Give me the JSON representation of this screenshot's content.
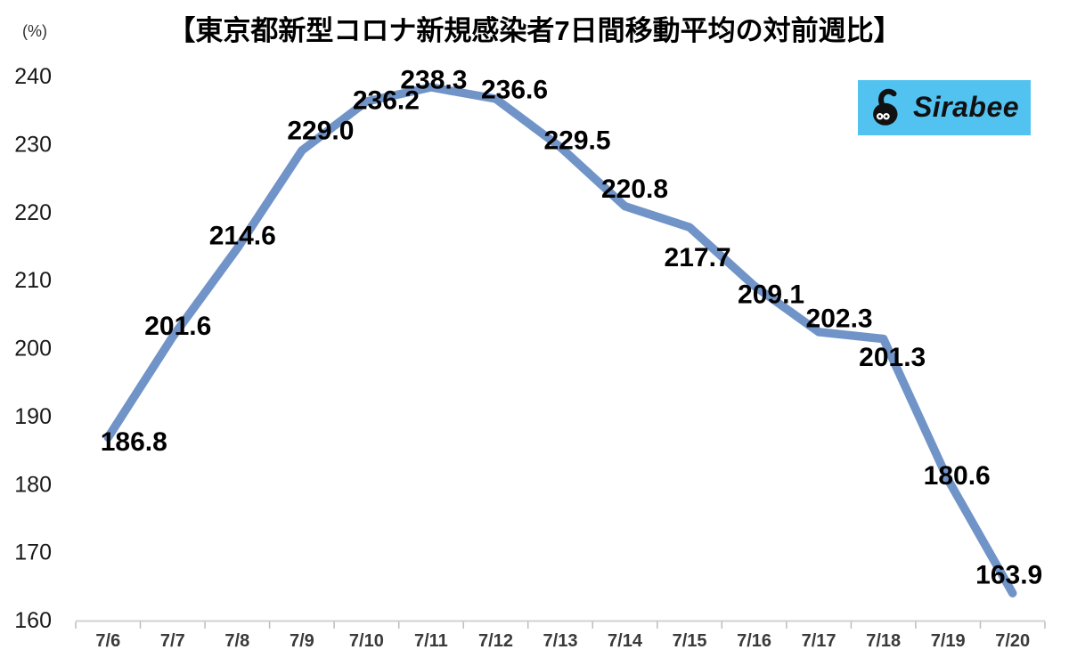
{
  "title": "【東京都新型コロナ新規感染者7日間移動平均の対前週比】",
  "unit_label": "(%)",
  "logo": {
    "text": "Sirabee",
    "bg_color": "#52C3F1",
    "fg_color": "#111111"
  },
  "chart_data": {
    "type": "line",
    "title": "【東京都新型コロナ新規感染者7日間移動平均の対前週比】",
    "categories": [
      "7/6",
      "7/7",
      "7/8",
      "7/9",
      "7/10",
      "7/11",
      "7/12",
      "7/13",
      "7/14",
      "7/15",
      "7/16",
      "7/17",
      "7/18",
      "7/19",
      "7/20"
    ],
    "values": [
      186.8,
      201.6,
      214.6,
      229.0,
      236.2,
      238.3,
      236.6,
      229.5,
      220.8,
      217.7,
      209.1,
      202.3,
      201.3,
      180.6,
      163.9
    ],
    "ylabel": "(%)",
    "ylim": [
      160,
      240
    ],
    "yticks": [
      160,
      170,
      180,
      190,
      200,
      210,
      220,
      230,
      240
    ],
    "ytick_step": 10,
    "grid": false,
    "legend": null,
    "data_labels": true,
    "line_color": "#7094C8",
    "data_label_color": "#000000",
    "axis_line_color": "#D2D2D2",
    "tick_mark_color": "#BDBDBD",
    "y_tick_label_color": "#1A1A1A",
    "x_tick_label_color": "#3A3A3A"
  }
}
